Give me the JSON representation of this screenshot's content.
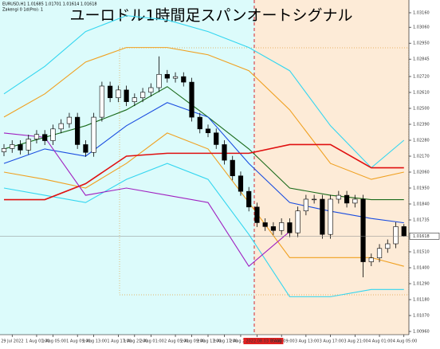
{
  "chart_data": {
    "type": "candlestick",
    "title": "ユーロドル1時間足スパンオートシグナル",
    "info": [
      "EURUSD,H1  1.01685 1.01701 1.01614 1.01618",
      "Zakengi 0 1d(Pro): 1"
    ],
    "categories": [
      null,
      "29 Jul 2022",
      null,
      null,
      "1 Aug 01:00",
      null,
      "1 Aug 05:00",
      null,
      null,
      "1 Aug 09:00",
      null,
      "1 Aug 13:00",
      null,
      null,
      "1 Aug 17:00",
      null,
      "1 Aug 21:00",
      null,
      "2 Aug 01:00",
      null,
      null,
      "2 Aug 05:00",
      null,
      "2 Aug 09:00",
      null,
      "2 Aug 13:00",
      null,
      "2 Aug 17:00",
      null,
      "2 Aug 21:00",
      null,
      "2022.08.03 05:00",
      null,
      null,
      "3 Aug 09:00",
      null,
      null,
      "3 Aug 13:00",
      null,
      null,
      "3 Aug 17:00",
      null,
      null,
      "3 Aug 21:00",
      null,
      null,
      "4 Aug 01:00",
      null,
      null,
      "4 Aug 05:00"
    ],
    "open": [
      1.022,
      1.02223,
      1.0225,
      1.02212,
      1.02288,
      1.0232,
      1.02277,
      1.02358,
      1.02395,
      1.02439,
      1.0225,
      1.02196,
      1.02439,
      1.02654,
      1.02573,
      1.02627,
      1.02546,
      1.02573,
      1.02611,
      1.02643,
      1.02735,
      1.02708,
      1.02719,
      1.02681,
      1.02439,
      1.02358,
      1.02331,
      1.0225,
      1.02142,
      1.02034,
      1.01927,
      1.01819,
      1.01711,
      1.01684,
      1.01657,
      1.01711,
      1.01641,
      1.01792,
      1.01873,
      1.01873,
      1.0163,
      1.01873,
      1.019,
      1.01846,
      1.01873,
      1.01441,
      1.01468,
      1.01533,
      1.01565,
      1.01684
    ],
    "high": [
      1.02253,
      1.0228,
      1.0228,
      1.02318,
      1.0235,
      1.0235,
      1.02388,
      1.02425,
      1.02469,
      1.02469,
      1.0228,
      1.02469,
      1.02684,
      1.02684,
      1.02657,
      1.02657,
      1.02603,
      1.02641,
      1.02673,
      1.02859,
      1.02765,
      1.02749,
      1.02749,
      1.02711,
      1.02469,
      1.02388,
      1.02361,
      1.0228,
      1.02172,
      1.02064,
      1.01957,
      1.01849,
      1.01741,
      1.01714,
      1.01741,
      1.01741,
      1.01822,
      1.01903,
      1.01903,
      1.01903,
      1.01903,
      1.0193,
      1.0193,
      1.01903,
      1.01903,
      1.01498,
      1.01563,
      1.01595,
      1.01714,
      1.01701
    ],
    "low": [
      1.0217,
      1.02193,
      1.02182,
      1.02182,
      1.02258,
      1.02247,
      1.02247,
      1.02328,
      1.02365,
      1.0222,
      1.02166,
      1.02166,
      1.02409,
      1.02543,
      1.02543,
      1.02516,
      1.02516,
      1.02543,
      1.02581,
      1.02613,
      1.02678,
      1.02678,
      1.02651,
      1.02409,
      1.02328,
      1.02301,
      1.0222,
      1.02112,
      1.02004,
      1.01897,
      1.01789,
      1.01681,
      1.01654,
      1.01627,
      1.01627,
      1.01611,
      1.01611,
      1.01762,
      1.01843,
      1.016,
      1.016,
      1.01843,
      1.01816,
      1.01816,
      1.01334,
      1.01411,
      1.01438,
      1.01503,
      1.01535,
      1.01614
    ],
    "close": [
      1.02223,
      1.0225,
      1.02212,
      1.02288,
      1.0232,
      1.02277,
      1.02358,
      1.02395,
      1.02439,
      1.0225,
      1.02196,
      1.02439,
      1.02654,
      1.02573,
      1.02627,
      1.02546,
      1.02573,
      1.02611,
      1.02643,
      1.02735,
      1.02708,
      1.02719,
      1.02681,
      1.02439,
      1.02358,
      1.02331,
      1.0225,
      1.02142,
      1.02034,
      1.01927,
      1.01819,
      1.01711,
      1.01684,
      1.01657,
      1.01711,
      1.01641,
      1.01792,
      1.01873,
      1.01873,
      1.0163,
      1.01873,
      1.019,
      1.01846,
      1.01873,
      1.01441,
      1.01468,
      1.01533,
      1.01565,
      1.01684,
      1.01618
    ],
    "up_color": "#ffffff",
    "down_color": "#000000",
    "line_x": [
      0,
      5,
      10,
      15,
      20,
      25,
      30,
      35,
      40,
      45,
      49
    ],
    "lines": [
      {
        "color": "#33d6f0",
        "values": [
          1.026,
          1.0279,
          1.0303,
          1.0314,
          1.0311,
          1.0303,
          1.0292,
          1.0276,
          1.0238,
          1.0209,
          1.0228
        ]
      },
      {
        "color": "#33d6f0",
        "values": [
          1.0195,
          1.019,
          1.0185,
          1.0201,
          1.0212,
          1.0201,
          1.0163,
          1.012,
          1.012,
          1.0125,
          1.0125
        ]
      },
      {
        "color": "#f0a020",
        "values": [
          1.0244,
          1.026,
          1.0282,
          1.0292,
          1.0292,
          1.0287,
          1.0276,
          1.0249,
          1.0212,
          1.0201,
          1.0206
        ]
      },
      {
        "color": "#f0a020",
        "values": [
          1.0206,
          1.0201,
          1.0195,
          1.0212,
          1.0233,
          1.0222,
          1.0185,
          1.0147,
          1.0147,
          1.0147,
          1.0141
        ]
      },
      {
        "color": "#1a6a1a",
        "values": [
          1.0222,
          1.023,
          1.0238,
          1.0249,
          1.0265,
          1.0244,
          1.0222,
          1.0195,
          1.019,
          1.0187,
          1.0187
        ]
      },
      {
        "color": "#1a4de0",
        "values": [
          1.0212,
          1.0222,
          1.0217,
          1.0238,
          1.0254,
          1.0244,
          1.0212,
          1.0185,
          1.0179,
          1.0174,
          1.0171
        ]
      },
      {
        "color": "#e01010",
        "values": [
          1.0187,
          1.0187,
          1.0198,
          1.0217,
          1.0219,
          1.0219,
          1.0219,
          1.0225,
          1.0225,
          1.0209,
          1.0209
        ]
      },
      {
        "color": "#a020c0",
        "values": [
          1.0233,
          1.023,
          1.019,
          1.0195,
          1.019,
          1.0185,
          1.0141,
          1.0165,
          null,
          null,
          null
        ]
      }
    ],
    "last_price": {
      "value": 1.01618,
      "label": "1.01618"
    },
    "ylim": [
      1.00938,
      1.03204
    ],
    "yticks": [
      {
        "value": 1.0096,
        "label": "1.00960"
      },
      {
        "value": 1.0107,
        "label": "1.01070"
      },
      {
        "value": 1.0118,
        "label": "1.01180"
      },
      {
        "value": 1.0129,
        "label": "1.01290"
      },
      {
        "value": 1.014,
        "label": "1.01400"
      },
      {
        "value": 1.0151,
        "label": "1.01510"
      },
      {
        "value": 1.0173,
        "label": "1.01735"
      },
      {
        "value": 1.0184,
        "label": "1.01840"
      },
      {
        "value": 1.0195,
        "label": "1.01950"
      },
      {
        "value": 1.0206,
        "label": "1.02060"
      },
      {
        "value": 1.0217,
        "label": "1.02170"
      },
      {
        "value": 1.0228,
        "label": "1.02280"
      },
      {
        "value": 1.0239,
        "label": "1.02390"
      },
      {
        "value": 1.025,
        "label": "1.02500"
      },
      {
        "value": 1.0261,
        "label": "1.02610"
      },
      {
        "value": 1.0272,
        "label": "1.02720"
      },
      {
        "value": 1.0284,
        "label": "1.02845"
      },
      {
        "value": 1.0295,
        "label": "1.02950"
      },
      {
        "value": 1.0306,
        "label": "1.03060"
      },
      {
        "value": 1.0316,
        "label": "1.03160"
      }
    ]
  }
}
